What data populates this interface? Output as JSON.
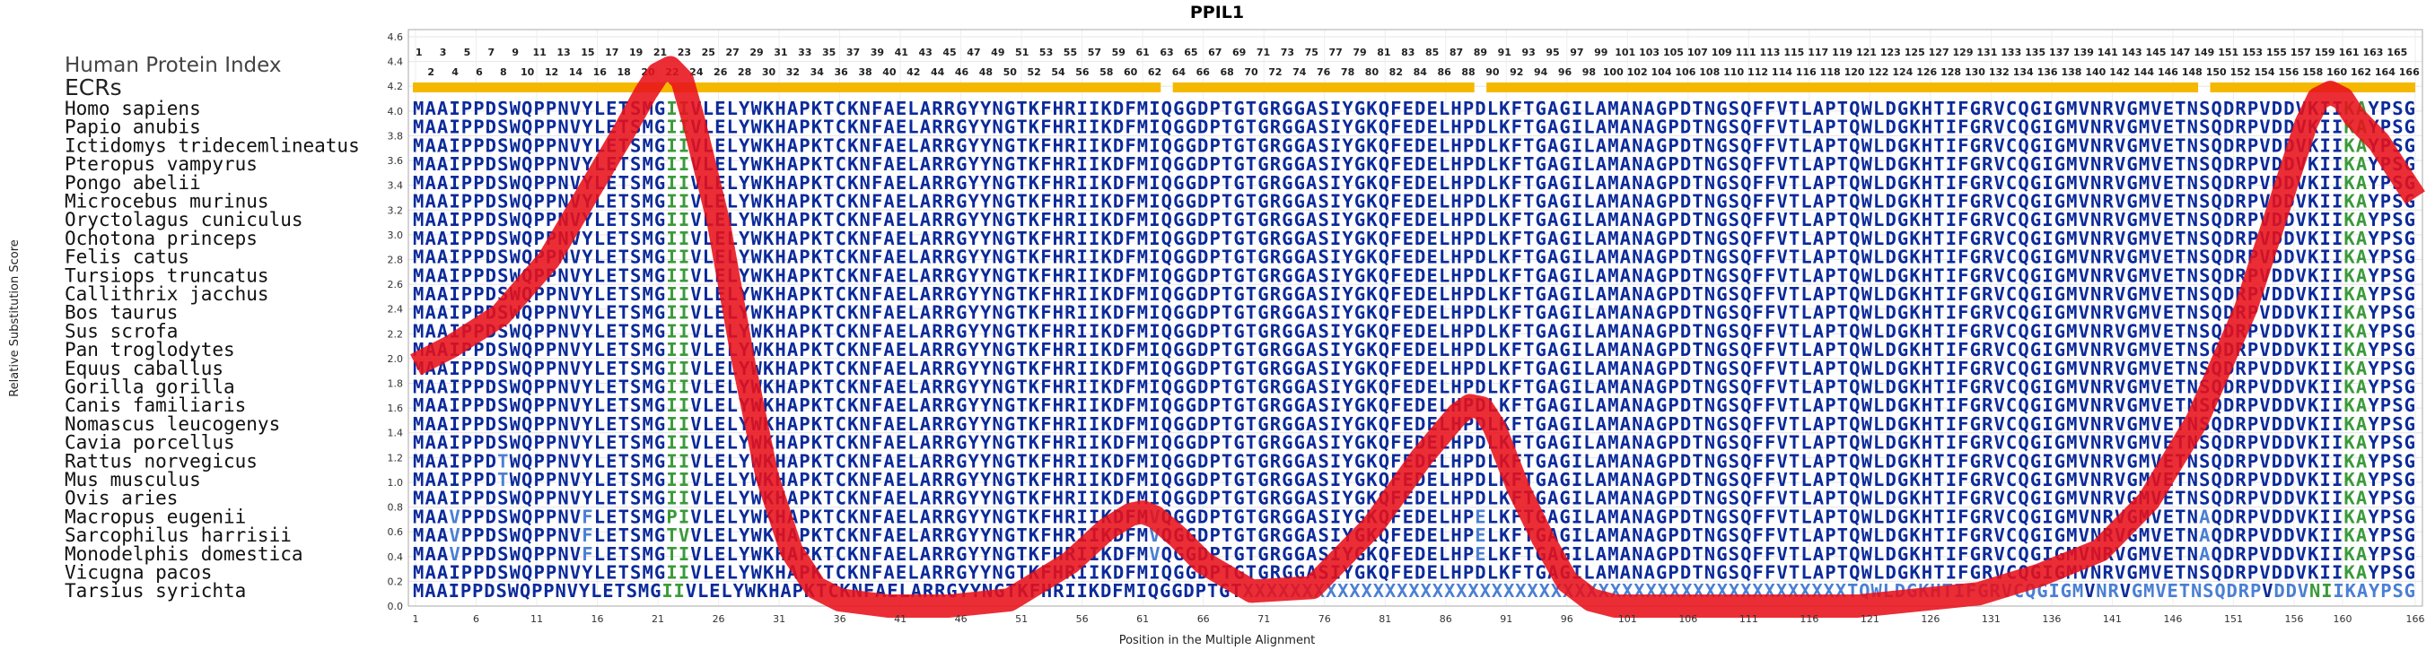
{
  "chart_data": {
    "type": "line",
    "title": "PPIL1",
    "xlabel": "Position in the Multiple Alignment",
    "ylabel": "Relative Substitution Score",
    "xlim": [
      1,
      166
    ],
    "ylim": [
      0.0,
      4.6
    ],
    "y_ticks": [
      "0.0",
      "0.2",
      "0.4",
      "0.6",
      "0.8",
      "1.0",
      "1.2",
      "1.4",
      "1.6",
      "1.8",
      "2.0",
      "2.2",
      "2.4",
      "2.6",
      "2.8",
      "3.0",
      "3.2",
      "3.4",
      "3.6",
      "3.8",
      "4.0",
      "4.2",
      "4.4",
      "4.6"
    ],
    "x_ticks": [
      "1",
      "6",
      "11",
      "16",
      "21",
      "26",
      "31",
      "36",
      "41",
      "46",
      "51",
      "56",
      "61",
      "66",
      "71",
      "76",
      "81",
      "86",
      "91",
      "96",
      "101",
      "106",
      "111",
      "116",
      "121",
      "126",
      "131",
      "136",
      "141",
      "146",
      "151",
      "156",
      "160",
      "166"
    ],
    "grid": true,
    "panel_label": "Human Protein Index",
    "ecr_label": "ECRs",
    "ecr_color": "#f5b800",
    "ecr_ranges": [
      [
        1,
        62
      ],
      [
        64,
        88
      ],
      [
        90,
        148
      ],
      [
        150,
        166
      ]
    ],
    "line_color": "#e8101a",
    "series": [
      {
        "x": [
          1,
          4,
          8,
          12,
          15,
          18,
          20,
          21,
          22,
          23,
          24,
          26,
          28,
          30,
          32,
          34,
          36,
          40,
          45,
          50,
          55,
          58,
          60,
          61,
          62,
          64,
          66,
          70,
          75,
          80,
          84,
          87,
          88,
          89,
          90,
          92,
          94,
          96,
          98,
          100,
          105,
          110,
          115,
          120,
          125,
          130,
          135,
          140,
          144,
          148,
          152,
          155,
          157,
          158,
          159,
          160,
          161,
          163,
          166
        ],
        "y": [
          1.95,
          2.1,
          2.35,
          2.8,
          3.3,
          3.8,
          4.15,
          4.3,
          4.35,
          4.25,
          3.9,
          3.1,
          2.0,
          1.05,
          0.45,
          0.15,
          0.05,
          0.0,
          0.0,
          0.05,
          0.35,
          0.62,
          0.74,
          0.76,
          0.72,
          0.55,
          0.35,
          0.12,
          0.15,
          0.65,
          1.2,
          1.55,
          1.62,
          1.6,
          1.45,
          0.95,
          0.55,
          0.2,
          0.05,
          0.0,
          0.0,
          0.0,
          0.0,
          0.0,
          0.05,
          0.1,
          0.25,
          0.45,
          0.85,
          1.5,
          2.4,
          3.3,
          3.9,
          4.1,
          4.15,
          4.1,
          3.95,
          3.75,
          3.3
        ]
      }
    ]
  },
  "species": [
    "Homo sapiens",
    "Papio anubis",
    "Ictidomys tridecemlineatus",
    "Pteropus vampyrus",
    "Pongo abelii",
    "Microcebus murinus",
    "Oryctolagus cuniculus",
    "Ochotona princeps",
    "Felis catus",
    "Tursiops truncatus",
    "Callithrix jacchus",
    "Bos taurus",
    "Sus scrofa",
    "Pan troglodytes",
    "Equus caballus",
    "Gorilla gorilla",
    "Canis familiaris",
    "Nomascus leucogenys",
    "Cavia porcellus",
    "Rattus norvegicus",
    "Mus musculus",
    "Ovis aries",
    "Macropus eugenii",
    "Sarcophilus harrisii",
    "Monodelphis domestica",
    "Vicugna pacos",
    "Tarsius syrichta"
  ],
  "sequences": [
    "MAAIPPDSWQPPNVYLETSMGIIVLELYWKHAPKTCKNFAELARRGYYNGTKFHRIIKDFMIQGGDPTGTGRGGASIYGKQFEDELHPDLKFTGAGILAMANAGPDTNGSQFFVTLAPTQWLDGKHTIFGRVCQGIGMVNRVGMVETNSQDRPVDDVKIIKAYPSG",
    "MAAIPPDSWQPPNVYLETSMGIIVLELYWKHAPKTCKNFAELARRGYYNGTKFHRIIKDFMIQGGDPTGTGRGGASIYGKQFEDELHPDLKFTGAGILAMANAGPDTNGSQFFVTLAPTQWLDGKHTIFGRVCQGIGMVNRVGMVETNSQDRPVDDVKIIKAYPSG",
    "MAAIPPDSWQPPNVYLETSMGIIVLELYWKHAPKTCKNFAELARRGYYNGTKFHRIIKDFMIQGGDPTGTGRGGASIYGKQFEDELHPDLKFTGAGILAMANAGPDTNGSQFFVTLAPTQWLDGKHTIFGRVCQGIGMVNRVGMVETNSQDRPVDDVKIIKAYPSG",
    "MAAIPPDSWQPPNVYLETSMGIIVLELYWKHAPKTCKNFAELARRGYYNGTKFHRIIKDFMIQGGDPTGTGRGGASIYGKQFEDELHPDLKFTGAGILAMANAGPDTNGSQFFVTLAPTQWLDGKHTIFGRVCQGIGMVNRVGMVETNSQDRPVDDVKIIKAYPSG",
    "MAAIPPDSWQPPNVYLETSMGIIVLELYWKHAPKTCKNFAELARRGYYNGTKFHRIIKDFMIQGGDPTGTGRGGASIYGKQFEDELHPDLKFTGAGILAMANAGPDTNGSQFFVTLAPTQWLDGKHTIFGRVCQGIGMVNRVGMVETNSQDRPVDDVKIIKAYPSG",
    "MAAIPPDSWQPPNVYLETSMGIIVLELYWKHAPKTCKNFAELARRGYYNGTKFHRIIKDFMIQGGDPTGTGRGGASIYGKQFEDELHPDLKFTGAGILAMANAGPDTNGSQFFVTLAPTQWLDGKHTIFGRVCQGIGMVNRVGMVETNSQDRPVDDVKIIKAYPSG",
    "MAAIPPDSWQPPNVYLETSMGIIVLELYWKHAPKTCKNFAELARRGYYNGTKFHRIIKDFMIQGGDPTGTGRGGASIYGKQFEDELHPDLKFTGAGILAMANAGPDTNGSQFFVTLAPTQWLDGKHTIFGRVCQGIGMVNRVGMVETNSQDRPVDDVKIIKAYPSG",
    "MAAIPPDSWQPPNVYLETSMGIIVLELYWKHAPKTCKNFAELARRGYYNGTKFHRIIKDFMIQGGDPTGTGRGGASIYGKQFEDELHPDLKFTGAGILAMANAGPDTNGSQFFVTLAPTQWLDGKHTIFGRVCQGIGMVNRVGMVETNSQDRPVDDVKIIKAYPSG",
    "MAAIPPDSWQPPNVYLETSMGIIVLELYWKHAPKTCKNFAELARRGYYNGTKFHRIIKDFMIQGGDPTGTGRGGASIYGKQFEDELHPDLKFTGAGILAMANAGPDTNGSQFFVTLAPTQWLDGKHTIFGRVCQGIGMVNRVGMVETNSQDRPVDDVKIIKAYPSG",
    "MAAIPPDSWQPPNVYLETSMGIIVLELYWKHAPKTCKNFAELARRGYYNGTKFHRIIKDFMIQGGDPTGTGRGGASIYGKQFEDELHPDLKFTGAGILAMANAGPDTNGSQFFVTLAPTQWLDGKHTIFGRVCQGIGMVNRVGMVETNSQDRPVDDVKIIKAYPSG",
    "MAAIPPDSWQPPNVYLETSMGIIVLELYWKHAPKTCKNFAELARRGYYNGTKFHRIIKDFMIQGGDPTGTGRGGASIYGKQFEDELHPDLKFTGAGILAMANAGPDTNGSQFFVTLAPTQWLDGKHTIFGRVCQGIGMVNRVGMVETNSQDRPVDDVKIIKAYPSG",
    "MAAIPPDSWQPPNVYLETSMGIIVLELYWKHAPKTCKNFAELARRGYYNGTKFHRIIKDFMIQGGDPTGTGRGGASIYGKQFEDELHPDLKFTGAGILAMANAGPDTNGSQFFVTLAPTQWLDGKHTIFGRVCQGIGMVNRVGMVETNSQDRPVDDVKIIKAYPSG",
    "MAAIPPDSWQPPNVYLETSMGIIVLELYWKHAPKTCKNFAELARRGYYNGTKFHRIIKDFMIQGGDPTGTGRGGASIYGKQFEDELHPDLKFTGAGILAMANAGPDTNGSQFFVTLAPTQWLDGKHTIFGRVCQGIGMVNRVGMVETNSQDRPVDDVKIIKAYPSG",
    "MAAIPPDSWQPPNVYLETSMGIIVLELYWKHAPKTCKNFAELARRGYYNGTKFHRIIKDFMIQGGDPTGTGRGGASIYGKQFEDELHPDLKFTGAGILAMANAGPDTNGSQFFVTLAPTQWLDGKHTIFGRVCQGIGMVNRVGMVETNSQDRPVDDVKIIKAYPSG",
    "MAAIPPDSWQPPNVYLETSMGIIVLELYWKHAPKTCKNFAELARRGYYNGTKFHRIIKDFMIQGGDPTGTGRGGASIYGKQFEDELHPDLKFTGAGILAMANAGPDTNGSQFFVTLAPTQWLDGKHTIFGRVCQGIGMVNRVGMVETNSQDRPVDDVKIIKAYPSG",
    "MAAIPPDSWQPPNVYLETSMGIIVLELYWKHAPKTCKNFAELARRGYYNGTKFHRIIKDFMIQGGDPTGTGRGGASIYGKQFEDELHPDLKFTGAGILAMANAGPDTNGSQFFVTLAPTQWLDGKHTIFGRVCQGIGMVNRVGMVETNSQDRPVDDVKIIKAYPSG",
    "MAAIPPDSWQPPNVYLETSMGIIVLELYWKHAPKTCKNFAELARRGYYNGTKFHRIIKDFMIQGGDPTGTGRGGASIYGKQFEDELHPDLKFTGAGILAMANAGPDTNGSQFFVTLAPTQWLDGKHTIFGRVCQGIGMVNRVGMVETNSQDRPVDDVKIIKAYPSG",
    "MAAIPPDSWQPPNVYLETSMGIIVLELYWKHAPKTCKNFAELARRGYYNGTKFHRIIKDFMIQGGDPTGTGRGGASIYGKQFEDELHPDLKFTGAGILAMANAGPDTNGSQFFVTLAPTQWLDGKHTIFGRVCQGIGMVNRVGMVETNSQDRPVDDVKIIKAYPSG",
    "MAAIPPDSWQPPNVYLETSMGIIVLELYWKHAPKTCKNFAELARRGYYNGTKFHRIIKDFMIQGGDPTGTGRGGASIYGKQFEDELHPDLKFTGAGILAMANAGPDTNGSQFFVTLAPTQWLDGKHTIFGRVCQGIGMVNRVGMVETNSQDRPVDDVKIIKAYPSG",
    "MAAIPPDTWQPPNVYLETSMGIIVLELYWKHAPKTCKNFAELARRGYYNGTKFHRIIKDFMIQGGDPTGTGRGGASIYGKQFEDELHPDLKFTGAGILAMANAGPDTNGSQFFVTLAPTQWLDGKHTIFGRVCQGIGMVNRVGMVETNSQDRPVDDVKIIKAYPSG",
    "MAAIPPDTWQPPNVYLETSMGIIVLELYWKHAPKTCKNFAELARRGYYNGTKFHRIIKDFMIQGGDPTGTGRGGASIYGKQFEDELHPDLKFTGAGILAMANAGPDTNGSQFFVTLAPTQWLDGKHTIFGRVCQGIGMVNRVGMVETNSQDRPVDDVKIIKAYPSG",
    "MAAIPPDSWQPPNVYLETSMGIIVLELYWKHAPKTCKNFAELARRGYYNGTKFHRIIKDFMIQGGDPTGTGRGGASIYGKQFEDELHPDLKFTGAGILAMANAGPDTNGSQFFVTLAPTQWLDGKHTIFGRVCQGIGMVNRVGMVETNSQDRPVDDVKIIKAYPSG",
    "MAAVPPDSWQPPNVFLETSMGPIVLELYWKHAPKTCKNFAELARRGYYNGTKFHRIIKDFMVQGGDPTGTGRGGASIYGKQFEDELHPELKFTGAGILAMANAGPDTNGSQFFVTLAPTQWLDGKHTIFGRVCQGIGMVNRVGMVETNAQDRPVDDVKIIKAYPSG",
    "MAAVPPDSWQPPNVFLETSMGTVVLELYWKHAPKTCKNFAELARRGYYNGTKFHRIIKDFMVQGGDPTGTGRGGASIYGKQFEDELHPELKFTGAGILAMANAGPDTNGSQFFVTLAPTQWLDGKHTIFGRVCQGIGMVNRVGMVETNAQDRPVDDVKIIKAYPSG",
    "MAAVPPDSWQPPNVFLETSMGTIVLELYWKHAPKTCKNFAELARRGYYNGTKFHRIIKDFMVQGGDPTGTGRGGASIYGKQFEDELHPELKFTGAGILAMANAGPDTNGSQFFVTLAPTQWLDGKHTIFGRVCQGIGMVNRVGMVETNAQDRPVDDVKIIKAYPSG",
    "MAAIPPDSWQPPNVYLETSMGIIVLELYWKHAPKTCKNFAELARRGYYNGTKFHRIIKDFMIQGGDPTGTGRGGASIYGKQFEDELHPDLKFTGAGILAMANAGPDTNGSQFFVTLAPTQWLDGKHTIFGRVCQGIGMVNRVGMVETNSQDRPVDDVKIIKAYPSG",
    "MAAIPPDSWQPPNVYLETSMGIIVLELYWKHAPKTCKNFAELARRGYYNGTKFHRIIKDFMIQGGDPTGTXXXXXXXXXXXXXXXXXXXXXXXXXXXXXXXXXXXXXXXXXXXXXXXXXXXTQWLDGKHTIFGRVCQGIGMVNRVGMVETNSQDRPVDDVNIIKAYPSG"
  ],
  "position_numbers_odd": [
    "1",
    "3",
    "5",
    "7",
    "9",
    "11",
    "13",
    "15",
    "17",
    "19",
    "21",
    "23",
    "25",
    "27",
    "29",
    "31",
    "33",
    "35",
    "37",
    "39",
    "41",
    "43",
    "45",
    "47",
    "49",
    "51",
    "53",
    "55",
    "57",
    "59",
    "61",
    "63",
    "65",
    "67",
    "69",
    "71",
    "73",
    "75",
    "77",
    "79",
    "81",
    "83",
    "85",
    "87",
    "89",
    "91",
    "93",
    "95",
    "97",
    "99",
    "101",
    "103",
    "105",
    "107",
    "109",
    "111",
    "113",
    "115",
    "117",
    "119",
    "121",
    "123",
    "125",
    "127",
    "129",
    "131",
    "133",
    "135",
    "137",
    "139",
    "141",
    "143",
    "145",
    "147",
    "149",
    "151",
    "153",
    "155",
    "157",
    "159",
    "161",
    "163",
    "165"
  ],
  "position_numbers_even": [
    "2",
    "4",
    "6",
    "8",
    "10",
    "12",
    "14",
    "16",
    "18",
    "20",
    "22",
    "24",
    "26",
    "28",
    "30",
    "32",
    "34",
    "36",
    "38",
    "40",
    "42",
    "44",
    "46",
    "48",
    "50",
    "52",
    "54",
    "56",
    "58",
    "60",
    "62",
    "64",
    "66",
    "68",
    "70",
    "72",
    "74",
    "76",
    "78",
    "80",
    "82",
    "84",
    "86",
    "88",
    "90",
    "92",
    "94",
    "96",
    "98",
    "100",
    "102",
    "104",
    "106",
    "108",
    "110",
    "112",
    "114",
    "116",
    "118",
    "120",
    "122",
    "124",
    "126",
    "128",
    "130",
    "132",
    "134",
    "136",
    "138",
    "140",
    "142",
    "144",
    "146",
    "148",
    "150",
    "152",
    "154",
    "156",
    "158",
    "160",
    "162",
    "164",
    "166"
  ],
  "residue_colors": {
    "conserved": "#0b2a9a",
    "variable": "#3a9a3a",
    "light": "#4a7fd4",
    "masked": "#4a7fd4"
  }
}
